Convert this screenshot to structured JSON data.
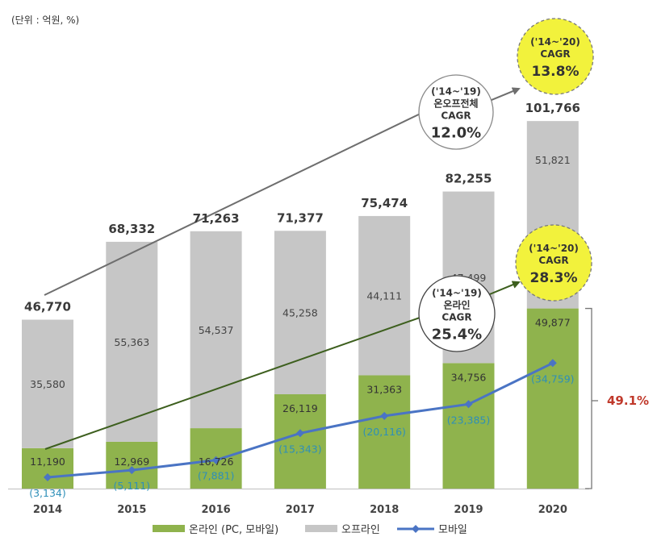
{
  "unit_label": "(단위 : 억원, %)",
  "chart_data": {
    "type": "bar",
    "stacked": true,
    "categories": [
      "2014",
      "2015",
      "2016",
      "2017",
      "2018",
      "2019",
      "2020"
    ],
    "series": [
      {
        "name": "온라인 (PC, 모바일)",
        "kind": "bar",
        "color": "#8fb34d",
        "values": [
          11190,
          12969,
          16726,
          26119,
          31363,
          34756,
          49877
        ]
      },
      {
        "name": "오프라인",
        "kind": "bar",
        "color": "#c6c6c6",
        "values": [
          35580,
          55363,
          54537,
          45258,
          44111,
          47499,
          51821
        ]
      },
      {
        "name": "모바일",
        "kind": "line",
        "color": "#4a74c4",
        "values": [
          3134,
          5111,
          7881,
          15343,
          20116,
          23385,
          34759
        ]
      }
    ],
    "totals": [
      46770,
      68332,
      71263,
      71377,
      75474,
      82255,
      101766
    ],
    "total_labels": [
      "46,770",
      "68,332",
      "71,263",
      "71,377",
      "75,474",
      "82,255",
      "101,766"
    ],
    "online_labels": [
      "11,190",
      "12,969",
      "16,726",
      "26,119",
      "31,363",
      "34,756",
      "49,877"
    ],
    "offline_labels": [
      "35,580",
      "55,363",
      "54,537",
      "45,258",
      "44,111",
      "47,499",
      "51,821"
    ],
    "mobile_labels": [
      "(3,134)",
      "(5,111)",
      "(7,881)",
      "(15,343)",
      "(20,116)",
      "(23,385)",
      "(34,759)"
    ],
    "ylim": [
      0,
      110000
    ],
    "legend_position": "bottom",
    "grid": false,
    "annotations": {
      "total_cagr_19": {
        "lines": [
          "('14~'19)",
          "온오프전체",
          "CAGR"
        ],
        "value": "12.0%"
      },
      "total_cagr_20": {
        "lines": [
          "('14~'20)",
          "CAGR"
        ],
        "value": "13.8%"
      },
      "online_cagr_19": {
        "lines": [
          "('14~'19)",
          "온라인",
          "CAGR"
        ],
        "value": "25.4%"
      },
      "online_cagr_20": {
        "lines": [
          "('14~'20)",
          "CAGR"
        ],
        "value": "28.3%"
      },
      "online_share_2020": "49.1%"
    }
  },
  "colors": {
    "online": "#8fb34d",
    "offline": "#c6c6c6",
    "mobile": "#4a74c4",
    "mobile_label": "#2e8fb8",
    "highlight_circle": "#f2f23c",
    "share_text": "#c0392b",
    "arrow_total": "#6e6e6e",
    "arrow_online": "#3d5f1e"
  }
}
